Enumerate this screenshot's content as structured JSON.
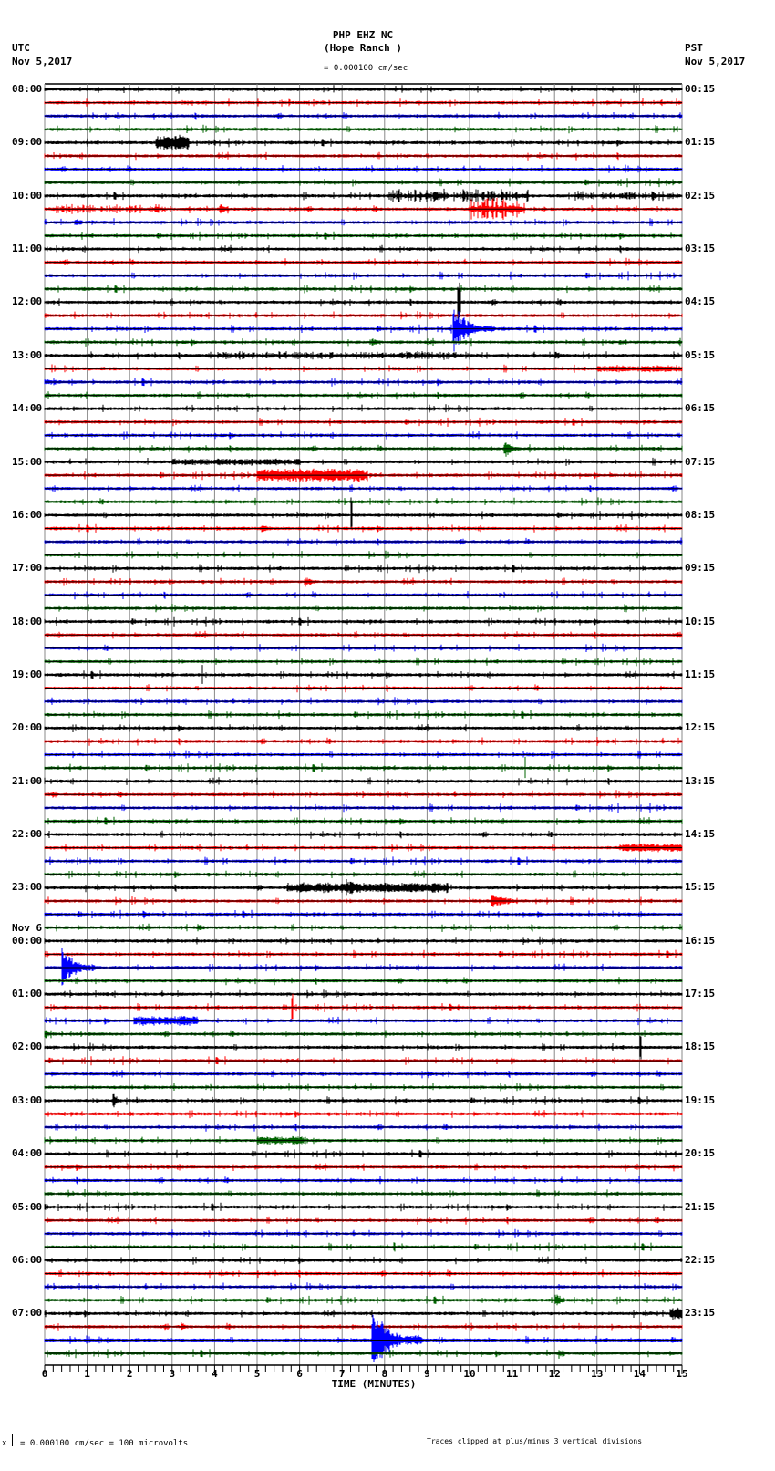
{
  "header": {
    "station": "PHP EHZ NC",
    "location": "(Hope Ranch )",
    "scale_label": "= 0.000100 cm/sec",
    "left_tz": "UTC",
    "left_date": "Nov 5,2017",
    "right_tz": "PST",
    "right_date": "Nov 5,2017"
  },
  "footer": {
    "scale_note": "= 0.000100 cm/sec =     100 microvolts",
    "scale_prefix": "x",
    "clip_note": "Traces clipped at plus/minus 3 vertical divisions"
  },
  "colors": {
    "trace_cycle": [
      "#000000",
      "#ff0000",
      "#0000ff",
      "#006400"
    ],
    "grid": "#888888",
    "baseline": "#000000"
  },
  "chart_data": {
    "type": "line",
    "title": "PHP EHZ NC (Hope Ranch )",
    "subtitle": "Helicorder seismogram, 15-minute traces, 0.000100 cm/sec per division",
    "xlabel": "TIME (MINUTES)",
    "ylabel": "",
    "xlim": [
      0,
      15
    ],
    "x_ticks": [
      "0",
      "1",
      "2",
      "3",
      "4",
      "5",
      "6",
      "7",
      "8",
      "9",
      "10",
      "11",
      "12",
      "13",
      "14",
      "15"
    ],
    "minor_ticks_per_minute": 5,
    "grid": true,
    "rows_count": 96,
    "minutes_per_row": 15,
    "left_labels": [
      {
        "row": 0,
        "label": "08:00"
      },
      {
        "row": 4,
        "label": "09:00"
      },
      {
        "row": 8,
        "label": "10:00"
      },
      {
        "row": 12,
        "label": "11:00"
      },
      {
        "row": 16,
        "label": "12:00"
      },
      {
        "row": 20,
        "label": "13:00"
      },
      {
        "row": 24,
        "label": "14:00"
      },
      {
        "row": 28,
        "label": "15:00"
      },
      {
        "row": 32,
        "label": "16:00"
      },
      {
        "row": 36,
        "label": "17:00"
      },
      {
        "row": 40,
        "label": "18:00"
      },
      {
        "row": 44,
        "label": "19:00"
      },
      {
        "row": 48,
        "label": "20:00"
      },
      {
        "row": 52,
        "label": "21:00"
      },
      {
        "row": 56,
        "label": "22:00"
      },
      {
        "row": 60,
        "label": "23:00"
      },
      {
        "row": 64,
        "label": "00:00",
        "date": "Nov 6"
      },
      {
        "row": 68,
        "label": "01:00"
      },
      {
        "row": 72,
        "label": "02:00"
      },
      {
        "row": 76,
        "label": "03:00"
      },
      {
        "row": 80,
        "label": "04:00"
      },
      {
        "row": 84,
        "label": "05:00"
      },
      {
        "row": 88,
        "label": "06:00"
      },
      {
        "row": 92,
        "label": "07:00"
      }
    ],
    "right_labels": [
      {
        "row": 0,
        "label": "00:15"
      },
      {
        "row": 4,
        "label": "01:15"
      },
      {
        "row": 8,
        "label": "02:15"
      },
      {
        "row": 12,
        "label": "03:15"
      },
      {
        "row": 16,
        "label": "04:15"
      },
      {
        "row": 20,
        "label": "05:15"
      },
      {
        "row": 24,
        "label": "06:15"
      },
      {
        "row": 28,
        "label": "07:15"
      },
      {
        "row": 32,
        "label": "08:15"
      },
      {
        "row": 36,
        "label": "09:15"
      },
      {
        "row": 40,
        "label": "10:15"
      },
      {
        "row": 44,
        "label": "11:15"
      },
      {
        "row": 48,
        "label": "12:15"
      },
      {
        "row": 52,
        "label": "13:15"
      },
      {
        "row": 56,
        "label": "14:15"
      },
      {
        "row": 60,
        "label": "15:15"
      },
      {
        "row": 64,
        "label": "16:15"
      },
      {
        "row": 68,
        "label": "17:15"
      },
      {
        "row": 72,
        "label": "18:15"
      },
      {
        "row": 76,
        "label": "19:15"
      },
      {
        "row": 80,
        "label": "20:15"
      },
      {
        "row": 84,
        "label": "21:15"
      },
      {
        "row": 88,
        "label": "22:15"
      },
      {
        "row": 92,
        "label": "23:15"
      }
    ],
    "clip_divisions": 3,
    "events": [
      {
        "row": 4,
        "start_min": 2.6,
        "end_min": 3.4,
        "amp": 9,
        "decay": false
      },
      {
        "row": 8,
        "start_min": 8.1,
        "end_min": 11.4,
        "amp": 8,
        "decay": false,
        "bursty": true
      },
      {
        "row": 8,
        "start_min": 12.3,
        "end_min": 15.0,
        "amp": 6,
        "decay": false,
        "bursty": true
      },
      {
        "row": 9,
        "start_min": 0.2,
        "end_min": 2.8,
        "amp": 6,
        "decay": false,
        "bursty": true
      },
      {
        "row": 9,
        "start_min": 4.1,
        "end_min": 4.6,
        "amp": 9,
        "decay": true
      },
      {
        "row": 9,
        "start_min": 10.0,
        "end_min": 11.3,
        "amp": 14,
        "decay": false,
        "bursty": true
      },
      {
        "row": 10,
        "start_min": 0.7,
        "end_min": 1.5,
        "amp": 5,
        "decay": true
      },
      {
        "row": 13,
        "start_min": 8.1,
        "end_min": 8.3,
        "amp": 4,
        "decay": true
      },
      {
        "row": 16,
        "start_min": 9.7,
        "end_min": 9.8,
        "amp": 30,
        "decay": false,
        "spike": true
      },
      {
        "row": 18,
        "start_min": 9.6,
        "end_min": 10.6,
        "amp": 30,
        "decay": true,
        "spike": true
      },
      {
        "row": 19,
        "start_min": 7.7,
        "end_min": 8.4,
        "amp": 5,
        "decay": true
      },
      {
        "row": 19,
        "start_min": 13.5,
        "end_min": 14.0,
        "amp": 5,
        "decay": true
      },
      {
        "row": 20,
        "start_min": 3.8,
        "end_min": 10.0,
        "amp": 5,
        "decay": false,
        "bursty": true
      },
      {
        "row": 20,
        "start_min": 12.0,
        "end_min": 12.5,
        "amp": 7,
        "decay": true
      },
      {
        "row": 21,
        "start_min": 13.0,
        "end_min": 15.0,
        "amp": 4,
        "decay": false
      },
      {
        "row": 22,
        "start_min": 0.0,
        "end_min": 1.5,
        "amp": 4,
        "decay": true
      },
      {
        "row": 27,
        "start_min": 10.8,
        "end_min": 11.4,
        "amp": 12,
        "decay": true
      },
      {
        "row": 28,
        "start_min": 3.0,
        "end_min": 6.0,
        "amp": 4,
        "decay": false
      },
      {
        "row": 29,
        "start_min": 5.0,
        "end_min": 7.6,
        "amp": 8,
        "decay": false
      },
      {
        "row": 29,
        "start_min": 13.3,
        "end_min": 13.7,
        "amp": 5,
        "decay": true
      },
      {
        "row": 33,
        "start_min": 5.1,
        "end_min": 5.6,
        "amp": 8,
        "decay": true
      },
      {
        "row": 32,
        "start_min": 7.2,
        "end_min": 7.25,
        "amp": 25,
        "decay": false,
        "spike": true
      },
      {
        "row": 37,
        "start_min": 6.1,
        "end_min": 6.7,
        "amp": 8,
        "decay": true
      },
      {
        "row": 44,
        "start_min": 3.7,
        "end_min": 3.72,
        "amp": 20,
        "decay": false,
        "spike": true
      },
      {
        "row": 49,
        "start_min": 13.0,
        "end_min": 13.1,
        "amp": 8,
        "decay": true
      },
      {
        "row": 51,
        "start_min": 11.3,
        "end_min": 11.32,
        "amp": 20,
        "decay": false,
        "spike": true
      },
      {
        "row": 57,
        "start_min": 13.5,
        "end_min": 15.0,
        "amp": 5,
        "decay": false
      },
      {
        "row": 60,
        "start_min": 5.7,
        "end_min": 9.5,
        "amp": 6,
        "decay": false
      },
      {
        "row": 60,
        "start_min": 7.1,
        "end_min": 8.2,
        "amp": 11,
        "decay": true
      },
      {
        "row": 61,
        "start_min": 10.5,
        "end_min": 11.8,
        "amp": 10,
        "decay": true
      },
      {
        "row": 62,
        "start_min": 2.3,
        "end_min": 2.6,
        "amp": 7,
        "decay": true
      },
      {
        "row": 63,
        "start_min": 3.6,
        "end_min": 4.2,
        "amp": 6,
        "decay": true
      },
      {
        "row": 66,
        "start_min": 0.4,
        "end_min": 1.2,
        "amp": 30,
        "decay": true,
        "spike": true
      },
      {
        "row": 69,
        "start_min": 9.7,
        "end_min": 9.9,
        "amp": 8,
        "decay": true
      },
      {
        "row": 69,
        "start_min": 5.8,
        "end_min": 5.85,
        "amp": 20,
        "decay": false,
        "spike": true
      },
      {
        "row": 70,
        "start_min": 2.1,
        "end_min": 3.6,
        "amp": 6,
        "decay": false
      },
      {
        "row": 71,
        "start_min": 0.0,
        "end_min": 0.7,
        "amp": 6,
        "decay": true
      },
      {
        "row": 72,
        "start_min": 14.0,
        "end_min": 14.05,
        "amp": 20,
        "decay": false,
        "spike": true
      },
      {
        "row": 74,
        "start_min": 9.0,
        "end_min": 9.3,
        "amp": 8,
        "decay": true
      },
      {
        "row": 76,
        "start_min": 1.6,
        "end_min": 1.9,
        "amp": 12,
        "decay": true
      },
      {
        "row": 76,
        "start_min": 7.0,
        "end_min": 7.2,
        "amp": 8,
        "decay": true
      },
      {
        "row": 79,
        "start_min": 5.0,
        "end_min": 6.1,
        "amp": 5,
        "decay": false
      },
      {
        "row": 87,
        "start_min": 8.2,
        "end_min": 8.25,
        "amp": 10,
        "decay": false,
        "spike": true
      },
      {
        "row": 91,
        "start_min": 12.0,
        "end_min": 12.6,
        "amp": 10,
        "decay": true
      },
      {
        "row": 92,
        "start_min": 14.7,
        "end_min": 15.0,
        "amp": 7,
        "decay": false
      },
      {
        "row": 93,
        "start_min": 3.2,
        "end_min": 3.6,
        "amp": 8,
        "decay": true
      },
      {
        "row": 94,
        "start_min": 7.7,
        "end_min": 8.9,
        "amp": 40,
        "decay": true,
        "clipped": true
      },
      {
        "row": 95,
        "start_min": 12.1,
        "end_min": 12.6,
        "amp": 7,
        "decay": true
      }
    ]
  }
}
